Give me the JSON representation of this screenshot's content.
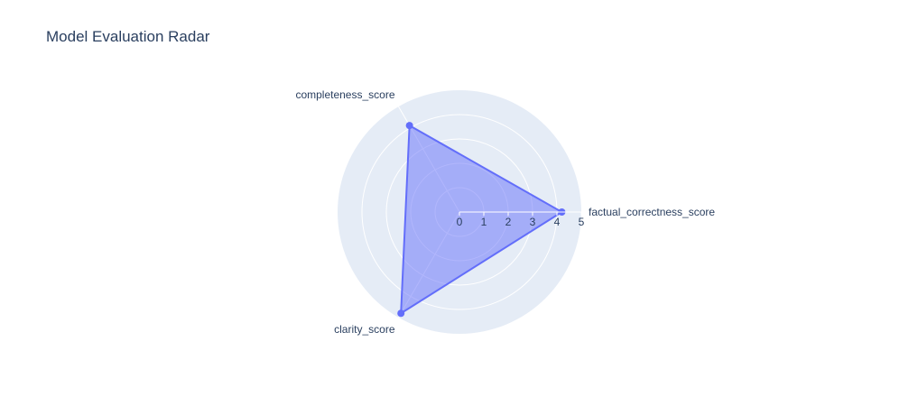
{
  "chart_data": {
    "type": "radar",
    "title": "Model Evaluation Radar",
    "categories": [
      "factual_correctness_score",
      "completeness_score",
      "clarity_score"
    ],
    "series": [
      {
        "values": [
          4.2,
          4.1,
          4.8
        ]
      }
    ],
    "radial_range": [
      0,
      5
    ],
    "radial_ticks": [
      "0",
      "1",
      "2",
      "3",
      "4",
      "5"
    ],
    "grid": true,
    "colors": {
      "series_line": "#636efa",
      "series_fill": "rgba(99,110,250,0.5)",
      "polar_background": "#e5ecf6",
      "grid": "#ffffff",
      "text": "#2a3f5f"
    }
  }
}
